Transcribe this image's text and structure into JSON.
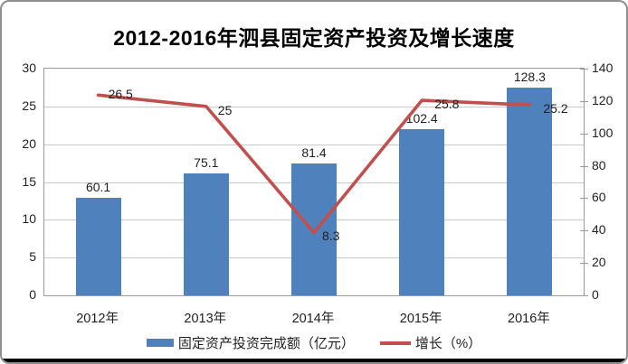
{
  "chart_data": {
    "type": "bar",
    "subtype": "bar-with-secondary-line",
    "title": "2012-2016年泗县固定资产投资及增长速度",
    "categories": [
      "2012年",
      "2013年",
      "2014年",
      "2015年",
      "2016年"
    ],
    "series": [
      {
        "name": "固定资产投资完成额（亿元）",
        "type": "bar",
        "axis": "right",
        "color": "#4F81BD",
        "values": [
          60.1,
          75.1,
          81.4,
          102.4,
          128.3
        ]
      },
      {
        "name": "增长（%）",
        "type": "line",
        "axis": "left",
        "color": "#C0504D",
        "values": [
          26.5,
          25,
          8.3,
          25.8,
          25.2
        ]
      }
    ],
    "data_labels": {
      "bar": [
        "60.1",
        "75.1",
        "81.4",
        "102.4",
        "128.3"
      ],
      "line": [
        "26.5",
        "25",
        "8.3",
        "25.8",
        "25.2"
      ]
    },
    "left_axis": {
      "min": 0,
      "max": 30,
      "step": 5,
      "tick_labels": [
        "0",
        "5",
        "10",
        "15",
        "20",
        "25",
        "30"
      ]
    },
    "right_axis": {
      "min": 0,
      "max": 140,
      "step": 20,
      "tick_labels": [
        "0",
        "20",
        "40",
        "60",
        "80",
        "100",
        "120",
        "140"
      ]
    },
    "grid": true,
    "legend_position": "bottom"
  },
  "colors": {
    "bar": "#4F81BD",
    "line": "#C0504D",
    "gridline": "#c9c9c9",
    "axis": "#9a9a9a",
    "frame_border": "#8f8f8f",
    "bottom_rule": "#000000",
    "background": "#ffffff"
  }
}
